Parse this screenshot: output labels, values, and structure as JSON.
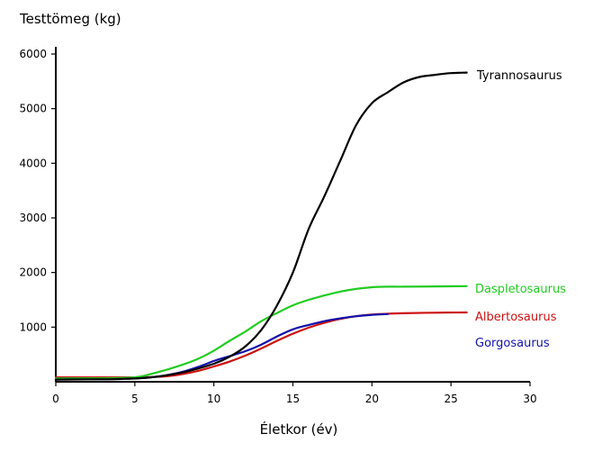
{
  "chart_data": {
    "type": "line",
    "title": "",
    "xlabel": "Életkor (év)",
    "ylabel": "Testtömeg (kg)",
    "xlim": [
      0,
      30
    ],
    "ylim": [
      0,
      6000
    ],
    "x_ticks": [
      0,
      5,
      10,
      15,
      20,
      25,
      30
    ],
    "y_ticks": [
      1000,
      2000,
      3000,
      4000,
      5000,
      6000
    ],
    "grid": false,
    "legend": "inline labels at right end of each line",
    "series": [
      {
        "name": "Tyrannosaurus",
        "color": "#000000",
        "points": [
          [
            0,
            40
          ],
          [
            2,
            45
          ],
          [
            4,
            50
          ],
          [
            6,
            80
          ],
          [
            8,
            170
          ],
          [
            10,
            330
          ],
          [
            11,
            460
          ],
          [
            12,
            650
          ],
          [
            13,
            950
          ],
          [
            14,
            1400
          ],
          [
            15,
            2000
          ],
          [
            16,
            2800
          ],
          [
            17,
            3400
          ],
          [
            18,
            4050
          ],
          [
            19,
            4700
          ],
          [
            20,
            5100
          ],
          [
            21,
            5300
          ],
          [
            22,
            5480
          ],
          [
            23,
            5580
          ],
          [
            24,
            5620
          ],
          [
            25,
            5650
          ],
          [
            26,
            5660
          ]
        ]
      },
      {
        "name": "Daspletosaurus",
        "color": "#22cc22",
        "points": [
          [
            0,
            60
          ],
          [
            3,
            65
          ],
          [
            5,
            80
          ],
          [
            6,
            140
          ],
          [
            7,
            220
          ],
          [
            8,
            310
          ],
          [
            9,
            420
          ],
          [
            10,
            570
          ],
          [
            11,
            750
          ],
          [
            12,
            920
          ],
          [
            13,
            1110
          ],
          [
            14,
            1260
          ],
          [
            15,
            1400
          ],
          [
            16,
            1500
          ],
          [
            17,
            1580
          ],
          [
            18,
            1650
          ],
          [
            19,
            1700
          ],
          [
            20,
            1730
          ],
          [
            21,
            1740
          ],
          [
            22,
            1740
          ],
          [
            24,
            1745
          ],
          [
            26,
            1750
          ]
        ]
      },
      {
        "name": "Albertosaurus",
        "color": "#cc1111",
        "points": [
          [
            0,
            80
          ],
          [
            3,
            80
          ],
          [
            5,
            80
          ],
          [
            6,
            85
          ],
          [
            7,
            100
          ],
          [
            8,
            140
          ],
          [
            9,
            200
          ],
          [
            10,
            280
          ],
          [
            11,
            370
          ],
          [
            12,
            480
          ],
          [
            13,
            610
          ],
          [
            14,
            750
          ],
          [
            15,
            880
          ],
          [
            16,
            990
          ],
          [
            17,
            1080
          ],
          [
            18,
            1150
          ],
          [
            19,
            1200
          ],
          [
            20,
            1230
          ],
          [
            21,
            1245
          ],
          [
            22,
            1255
          ],
          [
            24,
            1265
          ],
          [
            26,
            1270
          ]
        ]
      },
      {
        "name": "Gorgosaurus",
        "color": "#1111aa",
        "points": [
          [
            0,
            60
          ],
          [
            3,
            60
          ],
          [
            5,
            65
          ],
          [
            6,
            80
          ],
          [
            7,
            120
          ],
          [
            8,
            180
          ],
          [
            9,
            270
          ],
          [
            10,
            380
          ],
          [
            11,
            470
          ],
          [
            12,
            560
          ],
          [
            13,
            680
          ],
          [
            14,
            830
          ],
          [
            15,
            960
          ],
          [
            16,
            1040
          ],
          [
            17,
            1110
          ],
          [
            18,
            1160
          ],
          [
            19,
            1200
          ],
          [
            20,
            1225
          ],
          [
            21,
            1240
          ]
        ]
      }
    ],
    "labels": [
      {
        "text": "Tyrannosaurus",
        "series": 0
      },
      {
        "text": "Daspletosaurus",
        "series": 1
      },
      {
        "text": "Albertosaurus",
        "series": 2
      },
      {
        "text": "Gorgosaurus",
        "series": 3
      }
    ]
  }
}
